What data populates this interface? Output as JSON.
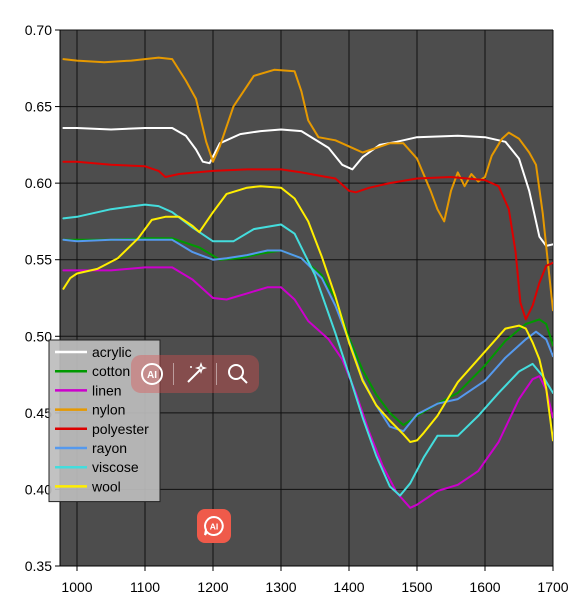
{
  "chart_data": {
    "type": "line",
    "xlim": [
      975,
      1700
    ],
    "ylim": [
      0.35,
      0.7
    ],
    "x_ticks": [
      1000,
      1100,
      1200,
      1300,
      1400,
      1500,
      1600,
      1700
    ],
    "y_ticks": [
      0.35,
      0.4,
      0.45,
      0.5,
      0.55,
      0.6,
      0.65,
      0.7
    ],
    "y_tick_labels": [
      "0.35",
      "0.40",
      "0.45",
      "0.50",
      "0.55",
      "0.60",
      "0.65",
      "0.70"
    ],
    "x_tick_labels": [
      "1000",
      "1100",
      "1200",
      "1300",
      "1400",
      "1500",
      "1600",
      "1700"
    ],
    "grid": true,
    "legend_position": "lower-left",
    "plot_background": "#4d4d4d",
    "series": [
      {
        "name": "acrylic",
        "color": "#ffffff",
        "x": [
          980,
          1000,
          1050,
          1100,
          1140,
          1160,
          1175,
          1185,
          1195,
          1210,
          1240,
          1270,
          1300,
          1330,
          1370,
          1390,
          1405,
          1420,
          1445,
          1470,
          1500,
          1560,
          1600,
          1630,
          1650,
          1665,
          1680,
          1690,
          1700
        ],
        "y": [
          0.636,
          0.636,
          0.635,
          0.636,
          0.636,
          0.631,
          0.622,
          0.614,
          0.613,
          0.626,
          0.632,
          0.634,
          0.635,
          0.634,
          0.623,
          0.612,
          0.609,
          0.617,
          0.625,
          0.627,
          0.63,
          0.631,
          0.63,
          0.627,
          0.616,
          0.595,
          0.565,
          0.559,
          0.56
        ]
      },
      {
        "name": "cotton",
        "color": "#009900",
        "x": [
          980,
          1000,
          1050,
          1100,
          1140,
          1180,
          1210,
          1240,
          1270,
          1300,
          1330,
          1360,
          1380,
          1400,
          1420,
          1440,
          1460,
          1480,
          1500,
          1530,
          1560,
          1600,
          1630,
          1660,
          1680,
          1690,
          1700
        ],
        "y": [
          0.563,
          0.563,
          0.563,
          0.564,
          0.564,
          0.558,
          0.55,
          0.551,
          0.554,
          0.556,
          0.551,
          0.54,
          0.525,
          0.499,
          0.478,
          0.462,
          0.45,
          0.442,
          0.448,
          0.456,
          0.463,
          0.481,
          0.497,
          0.508,
          0.511,
          0.508,
          0.494
        ]
      },
      {
        "name": "linen",
        "color": "#cc00cc",
        "x": [
          980,
          1000,
          1050,
          1100,
          1140,
          1170,
          1200,
          1220,
          1250,
          1280,
          1300,
          1320,
          1340,
          1370,
          1390,
          1410,
          1430,
          1450,
          1470,
          1490,
          1500,
          1530,
          1560,
          1590,
          1620,
          1650,
          1670,
          1680,
          1690,
          1700
        ],
        "y": [
          0.543,
          0.543,
          0.543,
          0.545,
          0.545,
          0.537,
          0.525,
          0.524,
          0.528,
          0.532,
          0.532,
          0.524,
          0.51,
          0.498,
          0.485,
          0.463,
          0.437,
          0.415,
          0.398,
          0.388,
          0.39,
          0.399,
          0.403,
          0.412,
          0.431,
          0.459,
          0.472,
          0.474,
          0.465,
          0.447
        ]
      },
      {
        "name": "nylon",
        "color": "#e69900",
        "x": [
          980,
          1000,
          1040,
          1080,
          1120,
          1140,
          1160,
          1175,
          1190,
          1200,
          1210,
          1230,
          1260,
          1290,
          1320,
          1330,
          1340,
          1355,
          1380,
          1405,
          1420,
          1440,
          1460,
          1480,
          1500,
          1520,
          1530,
          1540,
          1550,
          1560,
          1570,
          1580,
          1590,
          1600,
          1610,
          1625,
          1635,
          1650,
          1665,
          1675,
          1685,
          1692,
          1700
        ],
        "y": [
          0.681,
          0.68,
          0.679,
          0.68,
          0.682,
          0.681,
          0.667,
          0.655,
          0.627,
          0.614,
          0.624,
          0.65,
          0.67,
          0.674,
          0.673,
          0.66,
          0.641,
          0.63,
          0.628,
          0.623,
          0.62,
          0.623,
          0.626,
          0.626,
          0.616,
          0.595,
          0.583,
          0.575,
          0.595,
          0.607,
          0.598,
          0.606,
          0.601,
          0.604,
          0.618,
          0.629,
          0.633,
          0.629,
          0.62,
          0.612,
          0.58,
          0.55,
          0.517
        ]
      },
      {
        "name": "polyester",
        "color": "#dd0000",
        "x": [
          980,
          1000,
          1050,
          1100,
          1120,
          1130,
          1150,
          1200,
          1250,
          1300,
          1330,
          1355,
          1380,
          1400,
          1410,
          1430,
          1460,
          1500,
          1550,
          1600,
          1620,
          1635,
          1645,
          1652,
          1660,
          1670,
          1680,
          1690,
          1700
        ],
        "y": [
          0.614,
          0.614,
          0.612,
          0.611,
          0.608,
          0.604,
          0.606,
          0.608,
          0.609,
          0.609,
          0.607,
          0.605,
          0.603,
          0.595,
          0.594,
          0.597,
          0.6,
          0.603,
          0.604,
          0.602,
          0.598,
          0.583,
          0.555,
          0.522,
          0.511,
          0.52,
          0.535,
          0.546,
          0.548
        ]
      },
      {
        "name": "rayon",
        "color": "#5599ee",
        "x": [
          980,
          1000,
          1050,
          1100,
          1140,
          1170,
          1200,
          1220,
          1250,
          1280,
          1300,
          1330,
          1360,
          1380,
          1400,
          1420,
          1440,
          1460,
          1480,
          1500,
          1530,
          1560,
          1600,
          1630,
          1660,
          1675,
          1690,
          1700
        ],
        "y": [
          0.563,
          0.562,
          0.563,
          0.563,
          0.563,
          0.555,
          0.55,
          0.551,
          0.553,
          0.556,
          0.556,
          0.551,
          0.538,
          0.52,
          0.497,
          0.472,
          0.455,
          0.441,
          0.438,
          0.449,
          0.456,
          0.459,
          0.471,
          0.486,
          0.498,
          0.503,
          0.498,
          0.487
        ]
      },
      {
        "name": "viscose",
        "color": "#44dddd",
        "x": [
          980,
          1000,
          1050,
          1100,
          1120,
          1140,
          1170,
          1200,
          1230,
          1260,
          1300,
          1320,
          1350,
          1380,
          1400,
          1420,
          1440,
          1460,
          1475,
          1490,
          1510,
          1530,
          1560,
          1590,
          1620,
          1650,
          1670,
          1685,
          1700
        ],
        "y": [
          0.577,
          0.578,
          0.583,
          0.586,
          0.585,
          0.581,
          0.571,
          0.562,
          0.562,
          0.57,
          0.573,
          0.567,
          0.54,
          0.502,
          0.475,
          0.447,
          0.422,
          0.402,
          0.396,
          0.404,
          0.421,
          0.435,
          0.435,
          0.448,
          0.463,
          0.477,
          0.482,
          0.474,
          0.463
        ]
      },
      {
        "name": "wool",
        "color": "#ffee00",
        "x": [
          980,
          990,
          1000,
          1030,
          1060,
          1090,
          1110,
          1130,
          1150,
          1170,
          1180,
          1200,
          1220,
          1250,
          1270,
          1300,
          1320,
          1340,
          1360,
          1380,
          1400,
          1420,
          1440,
          1460,
          1480,
          1490,
          1500,
          1510,
          1530,
          1560,
          1600,
          1630,
          1650,
          1660,
          1670,
          1680,
          1690,
          1700
        ],
        "y": [
          0.531,
          0.538,
          0.541,
          0.544,
          0.551,
          0.564,
          0.576,
          0.578,
          0.578,
          0.572,
          0.568,
          0.581,
          0.593,
          0.597,
          0.598,
          0.597,
          0.59,
          0.575,
          0.552,
          0.526,
          0.496,
          0.471,
          0.455,
          0.445,
          0.436,
          0.431,
          0.432,
          0.437,
          0.448,
          0.47,
          0.49,
          0.505,
          0.507,
          0.505,
          0.496,
          0.485,
          0.466,
          0.432
        ]
      }
    ]
  },
  "toolbar": {
    "icons": [
      "ai-icon",
      "magic-wand-icon",
      "search-icon"
    ]
  },
  "badge": {
    "label": "AI",
    "color": "#ef5a4a"
  }
}
